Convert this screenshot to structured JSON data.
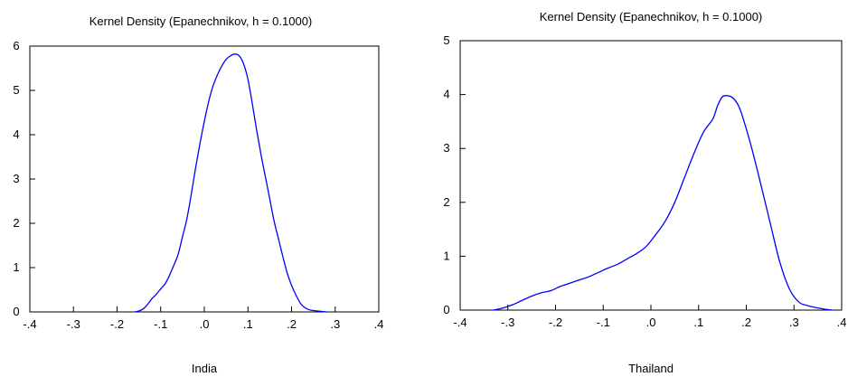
{
  "chart_data": [
    {
      "type": "line",
      "title": "Kernel Density (Epanechnikov, h = 0.1000)",
      "xlabel": "India",
      "ylabel": "",
      "xlim": [
        -0.4,
        0.4
      ],
      "ylim": [
        0,
        6
      ],
      "x_ticks": [
        -0.4,
        -0.3,
        -0.2,
        -0.1,
        0.0,
        0.1,
        0.2,
        0.3,
        0.4
      ],
      "x_tick_labels": [
        "-.4",
        "-.3",
        "-.2",
        "-.1",
        ".0",
        ".1",
        ".2",
        ".3",
        ".4"
      ],
      "y_ticks": [
        0,
        1,
        2,
        3,
        4,
        5,
        6
      ],
      "y_tick_labels": [
        "0",
        "1",
        "2",
        "3",
        "4",
        "5",
        "6"
      ],
      "grid": false,
      "line_color": "#0000ff",
      "series": [
        {
          "x": [
            -0.16,
            -0.15,
            -0.14,
            -0.13,
            -0.12,
            -0.11,
            -0.1,
            -0.09,
            -0.08,
            -0.07,
            -0.06,
            -0.05,
            -0.04,
            -0.03,
            -0.02,
            -0.01,
            0.0,
            0.01,
            0.02,
            0.03,
            0.04,
            0.05,
            0.06,
            0.07,
            0.08,
            0.09,
            0.1,
            0.11,
            0.12,
            0.13,
            0.14,
            0.15,
            0.16,
            0.17,
            0.18,
            0.19,
            0.2,
            0.21,
            0.22,
            0.23,
            0.24,
            0.25,
            0.26,
            0.27,
            0.28
          ],
          "values": [
            0.0,
            0.02,
            0.07,
            0.17,
            0.3,
            0.4,
            0.52,
            0.63,
            0.82,
            1.05,
            1.3,
            1.7,
            2.1,
            2.65,
            3.25,
            3.8,
            4.3,
            4.75,
            5.1,
            5.35,
            5.55,
            5.7,
            5.78,
            5.82,
            5.78,
            5.6,
            5.25,
            4.7,
            4.1,
            3.55,
            3.05,
            2.55,
            2.05,
            1.65,
            1.25,
            0.88,
            0.6,
            0.38,
            0.2,
            0.1,
            0.05,
            0.03,
            0.02,
            0.01,
            0.0
          ]
        }
      ]
    },
    {
      "type": "line",
      "title": "Kernel Density (Epanechnikov, h = 0.1000)",
      "xlabel": "Thailand",
      "ylabel": "",
      "xlim": [
        -0.4,
        0.4
      ],
      "ylim": [
        0,
        5
      ],
      "x_ticks": [
        -0.4,
        -0.3,
        -0.2,
        -0.1,
        0.0,
        0.1,
        0.2,
        0.3,
        0.4
      ],
      "x_tick_labels": [
        "-.4",
        "-.3",
        "-.2",
        "-.1",
        ".0",
        ".1",
        ".2",
        ".3",
        ".4"
      ],
      "y_ticks": [
        0,
        1,
        2,
        3,
        4,
        5
      ],
      "y_tick_labels": [
        "0",
        "1",
        "2",
        "3",
        "4",
        "5"
      ],
      "grid": false,
      "line_color": "#0000ff",
      "series": [
        {
          "x": [
            -0.33,
            -0.31,
            -0.29,
            -0.27,
            -0.25,
            -0.23,
            -0.21,
            -0.19,
            -0.17,
            -0.15,
            -0.13,
            -0.11,
            -0.09,
            -0.07,
            -0.05,
            -0.03,
            -0.01,
            0.01,
            0.03,
            0.05,
            0.07,
            0.09,
            0.11,
            0.13,
            0.14,
            0.15,
            0.16,
            0.17,
            0.18,
            0.19,
            0.21,
            0.23,
            0.25,
            0.27,
            0.29,
            0.31,
            0.33,
            0.35,
            0.37,
            0.38
          ],
          "values": [
            0.0,
            0.04,
            0.1,
            0.18,
            0.26,
            0.32,
            0.36,
            0.44,
            0.5,
            0.56,
            0.62,
            0.7,
            0.78,
            0.85,
            0.95,
            1.05,
            1.18,
            1.4,
            1.65,
            2.0,
            2.45,
            2.9,
            3.3,
            3.55,
            3.8,
            3.96,
            3.98,
            3.95,
            3.85,
            3.65,
            3.05,
            2.35,
            1.62,
            0.9,
            0.4,
            0.15,
            0.08,
            0.04,
            0.01,
            0.0
          ]
        }
      ]
    }
  ]
}
